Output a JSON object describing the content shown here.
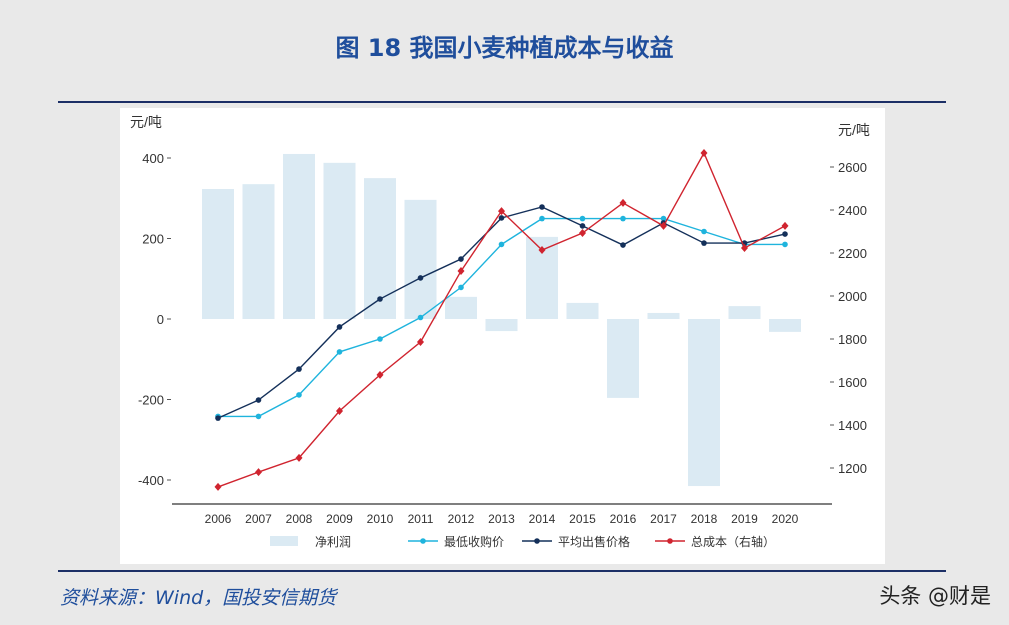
{
  "title": "图 18 我国小麦种植成本与收益",
  "source": "资料来源：Wind，国投安信期货",
  "watermark": "头条 @财是",
  "chart_data": {
    "type": "bar+line",
    "title": "图 18 我国小麦种植成本与收益",
    "categories": [
      "2006",
      "2007",
      "2008",
      "2009",
      "2010",
      "2011",
      "2012",
      "2013",
      "2014",
      "2015",
      "2016",
      "2017",
      "2018",
      "2019",
      "2020"
    ],
    "left_axis": {
      "label": "元/吨",
      "ylim": [
        -460,
        460
      ],
      "ticks": [
        -400,
        -200,
        0,
        200,
        400
      ]
    },
    "right_axis": {
      "label": "元/吨",
      "ylim": [
        1100,
        2700
      ],
      "ticks": [
        1200,
        1400,
        1600,
        1800,
        2000,
        2200,
        2400,
        2600
      ]
    },
    "series": [
      {
        "name": "净利润",
        "type": "bar",
        "axis": "left",
        "color": "#dbeaf3",
        "values": [
          323,
          335,
          410,
          388,
          350,
          296,
          55,
          -30,
          204,
          40,
          -196,
          15,
          -415,
          32,
          -32
        ]
      },
      {
        "name": "最低收购价",
        "type": "line",
        "axis": "right",
        "color": "#1fb4dd",
        "values": [
          1440,
          1440,
          1540,
          1740,
          1800,
          1900,
          2040,
          2240,
          2360,
          2360,
          2360,
          2360,
          2300,
          2240,
          2240
        ]
      },
      {
        "name": "平均出售价格",
        "type": "line",
        "axis": "right",
        "color": "#14305a",
        "values": [
          1432,
          1516,
          1660,
          1856,
          1986,
          2084,
          2172,
          2363,
          2414,
          2326,
          2237,
          2340,
          2246,
          2246,
          2288
        ]
      },
      {
        "name": "总成本（右轴）",
        "type": "line",
        "axis": "right",
        "color": "#d0242f",
        "values": [
          1112,
          1181,
          1247,
          1465,
          1633,
          1786,
          2116,
          2395,
          2214,
          2293,
          2433,
          2326,
          2665,
          2223,
          2326
        ]
      }
    ],
    "legend_position": "bottom",
    "grid": false
  }
}
